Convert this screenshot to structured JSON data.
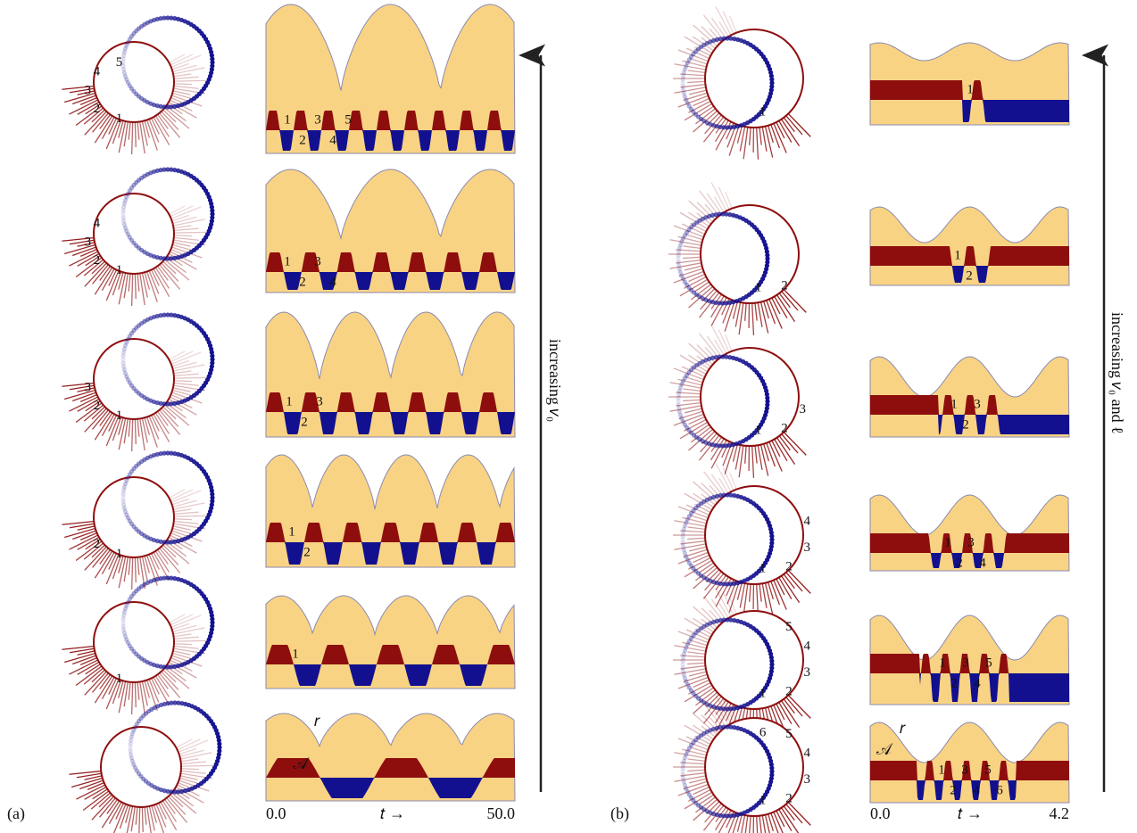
{
  "panels": [
    {
      "label": "(a)",
      "arrow_label": "increasing 𝑣₀",
      "axis": {
        "start": "0.0",
        "mid": "𝑡 →",
        "end": "50.0"
      },
      "curve_labels": {
        "r": "𝑟",
        "A": "𝒜"
      },
      "rows": [
        {
          "loop_labels": [
            "1",
            "2",
            "3",
            "4",
            "5"
          ],
          "wave_labels": [
            "1",
            "2",
            "3",
            "4",
            "5"
          ]
        },
        {
          "loop_labels": [
            "1",
            "2",
            "3",
            "4"
          ],
          "wave_labels": [
            "1",
            "2",
            "3",
            "4"
          ]
        },
        {
          "loop_labels": [
            "1",
            "2",
            "3"
          ],
          "wave_labels": [
            "1",
            "2",
            "3"
          ]
        },
        {
          "loop_labels": [
            "1",
            "2"
          ],
          "wave_labels": [
            "1",
            "2"
          ]
        },
        {
          "loop_labels": [
            "1"
          ],
          "wave_labels": [
            "1"
          ]
        },
        {
          "loop_labels": [],
          "wave_labels": []
        }
      ]
    },
    {
      "label": "(b)",
      "arrow_label": "increasing 𝑣₀ and ℓ",
      "axis": {
        "start": "0.0",
        "mid": "𝑡 →",
        "end": "4.2"
      },
      "curve_labels": {
        "r": "𝑟",
        "A": "𝒜"
      },
      "rows": [
        {
          "loop_labels": [
            "1"
          ],
          "wave_labels": [
            "1"
          ]
        },
        {
          "loop_labels": [
            "1",
            "2"
          ],
          "wave_labels": [
            "1",
            "2"
          ]
        },
        {
          "loop_labels": [
            "1",
            "2",
            "3"
          ],
          "wave_labels": [
            "1",
            "2",
            "3"
          ]
        },
        {
          "loop_labels": [
            "1",
            "2",
            "3",
            "4"
          ],
          "wave_labels": [
            "1",
            "2",
            "3",
            "4"
          ]
        },
        {
          "loop_labels": [
            "1",
            "2",
            "3",
            "4",
            "5"
          ],
          "wave_labels": [
            "1",
            "2",
            "3",
            "4",
            "5"
          ]
        },
        {
          "loop_labels": [
            "1",
            "2",
            "3",
            "4",
            "5",
            "6"
          ],
          "wave_labels": [
            "1",
            "2",
            "3",
            "4",
            "5",
            "6"
          ]
        }
      ]
    }
  ]
}
